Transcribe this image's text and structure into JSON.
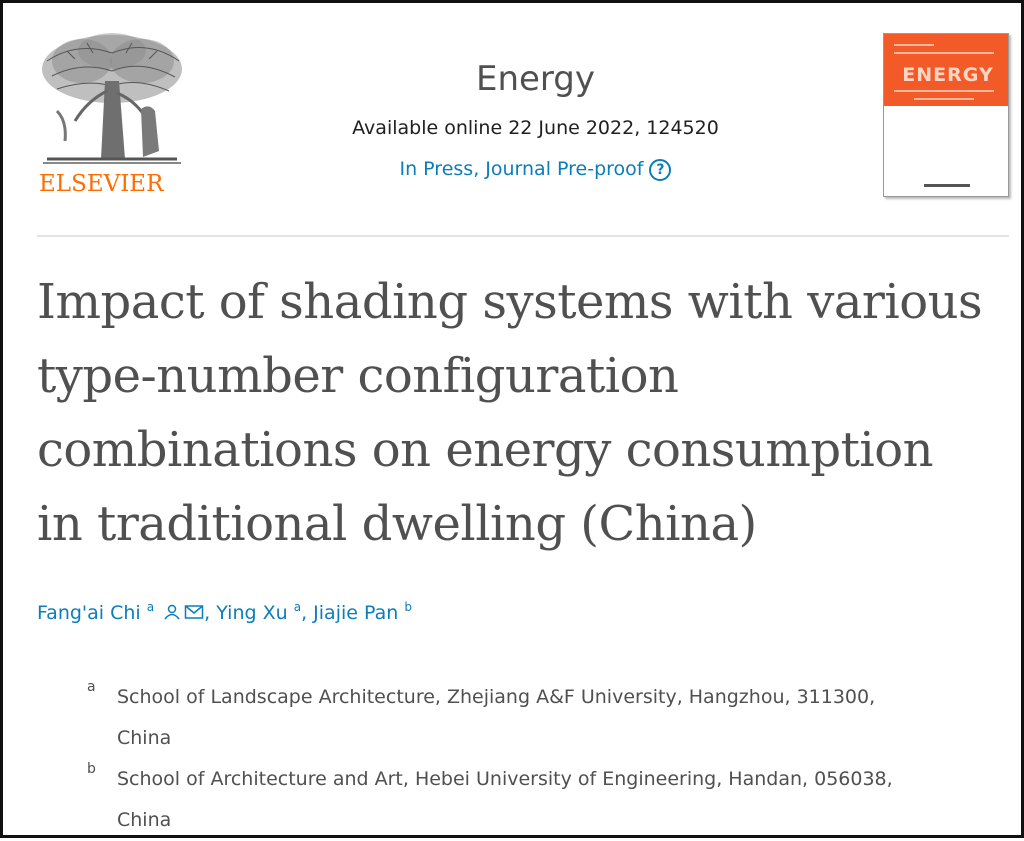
{
  "publisher": {
    "name": "ELSEVIER",
    "icon": "elsevier-tree-icon"
  },
  "journal": {
    "title": "Energy",
    "availability": "Available online 22 June 2022, 124520",
    "status": "In Press, Journal Pre-proof",
    "help_icon_glyph": "?",
    "cover_word": "ENERGY"
  },
  "article": {
    "title_lines": [
      "Impact of shading systems with various",
      "type-number configuration",
      "combinations on energy consumption",
      "in traditional dwelling (China)"
    ]
  },
  "authors": [
    {
      "name": "Fang'ai Chi",
      "sup": "a",
      "icons": [
        "person-icon",
        "mail-icon"
      ]
    },
    {
      "name": "Ying Xu",
      "sup": "a"
    },
    {
      "name": "Jiajie Pan",
      "sup": "b"
    }
  ],
  "author_separator": ",",
  "affiliations": [
    {
      "label": "a",
      "line1": "School of Landscape Architecture, Zhejiang A&F University, Hangzhou, 311300,",
      "line2": "China"
    },
    {
      "label": "b",
      "line1": "School of Architecture and Art, Hebei University of Engineering, Handan, 056038,",
      "line2": "China"
    }
  ],
  "colors": {
    "link": "#0c7dbb",
    "brand": "#ff6c00",
    "text": "#505050",
    "cover": "#f25a28"
  }
}
